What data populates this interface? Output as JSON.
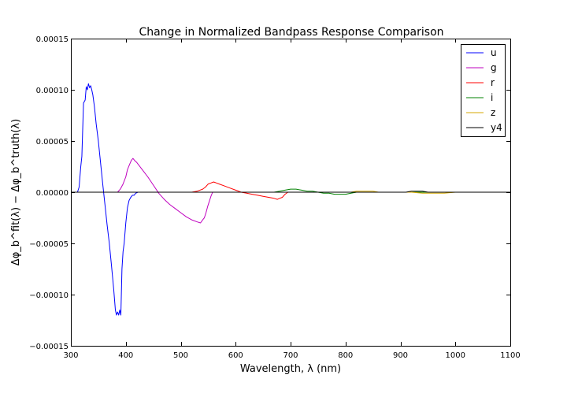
{
  "chart_data": {
    "type": "line",
    "title": "Change in Normalized Bandpass Response Comparison",
    "xlabel": "Wavelength, λ (nm)",
    "ylabel": "Δφ_b^fit(λ) − Δφ_b^truth(λ)",
    "xlim": [
      300,
      1100
    ],
    "ylim": [
      -0.00015,
      0.00015
    ],
    "x_ticks": [
      300,
      400,
      500,
      600,
      700,
      800,
      900,
      1000,
      1100
    ],
    "y_ticks": [
      -0.00015,
      -0.0001,
      -5e-05,
      0.0,
      5e-05,
      0.0001,
      0.00015
    ],
    "x_tick_labels": [
      "300",
      "400",
      "500",
      "600",
      "700",
      "800",
      "900",
      "1000",
      "1100"
    ],
    "y_tick_labels": [
      "−0.00015",
      "−0.00010",
      "−0.00005",
      "0.00000",
      "0.00005",
      "0.00010",
      "0.00015"
    ],
    "grid": false,
    "legend_position": "top-right",
    "series": [
      {
        "name": "u",
        "color": "#0000ff",
        "x": [
          300,
          312,
          315,
          318,
          320,
          323,
          326,
          328,
          330,
          332,
          334,
          336,
          338,
          340,
          343,
          346,
          350,
          354,
          358,
          362,
          366,
          370,
          374,
          378,
          381,
          383,
          385,
          387,
          389,
          391,
          393,
          395,
          397,
          400,
          403,
          406,
          409,
          412,
          415,
          418,
          422,
          430,
          450,
          500,
          600,
          700,
          800,
          900,
          1000,
          1100
        ],
        "y": [
          0,
          0,
          5e-06,
          2.5e-05,
          3.5e-05,
          8.7e-05,
          9e-05,
          0.000103,
          0.0001,
          0.000106,
          0.000102,
          0.000104,
          0.0001,
          9.5e-05,
          8.3e-05,
          6.7e-05,
          5e-05,
          2.9e-05,
          8e-06,
          -1.2e-05,
          -3.2e-05,
          -5e-05,
          -7.2e-05,
          -9.5e-05,
          -0.000115,
          -0.00012,
          -0.000117,
          -0.00012,
          -0.000115,
          -0.00012,
          -7.5e-05,
          -5.8e-05,
          -5e-05,
          -3e-05,
          -1.5e-05,
          -8e-06,
          -5e-06,
          -3e-06,
          -3e-06,
          -1e-06,
          0,
          0,
          0,
          0,
          0,
          0,
          0,
          0,
          0,
          0
        ]
      },
      {
        "name": "g",
        "color": "#bf00bf",
        "x": [
          300,
          385,
          390,
          395,
          400,
          403,
          406,
          410,
          413,
          416,
          420,
          430,
          440,
          450,
          460,
          470,
          480,
          490,
          500,
          510,
          520,
          530,
          536,
          540,
          543,
          546,
          549,
          552,
          555,
          558,
          561,
          565,
          600,
          700,
          800,
          900,
          1000,
          1100
        ],
        "y": [
          0,
          0,
          3e-06,
          8e-06,
          1.5e-05,
          2.2e-05,
          2.6e-05,
          3.1e-05,
          3.3e-05,
          3.1e-05,
          2.9e-05,
          2.2e-05,
          1.5e-05,
          7e-06,
          -1e-06,
          -7e-06,
          -1.2e-05,
          -1.6e-05,
          -2e-05,
          -2.4e-05,
          -2.7e-05,
          -2.9e-05,
          -3e-05,
          -2.7e-05,
          -2.5e-05,
          -2e-05,
          -1.4e-05,
          -9e-06,
          -4e-06,
          0,
          0,
          0,
          0,
          0,
          0,
          0,
          0,
          0
        ]
      },
      {
        "name": "r",
        "color": "#ff0000",
        "x": [
          300,
          520,
          530,
          540,
          545,
          550,
          555,
          560,
          565,
          570,
          580,
          590,
          600,
          610,
          620,
          630,
          640,
          650,
          660,
          670,
          676,
          680,
          685,
          690,
          695,
          700,
          720,
          800,
          900,
          1000,
          1100
        ],
        "y": [
          0,
          0,
          1e-06,
          3e-06,
          5e-06,
          8e-06,
          9e-06,
          1e-05,
          9e-06,
          8e-06,
          6e-06,
          4e-06,
          2e-06,
          0,
          -1e-06,
          -2e-06,
          -3e-06,
          -4e-06,
          -5e-06,
          -6e-06,
          -7e-06,
          -6e-06,
          -5e-06,
          -2e-06,
          0,
          0,
          0,
          0,
          0,
          0,
          0
        ]
      },
      {
        "name": "i",
        "color": "#008000",
        "x": [
          300,
          670,
          680,
          690,
          700,
          710,
          720,
          730,
          740,
          750,
          760,
          770,
          780,
          790,
          800,
          810,
          820,
          830,
          840,
          850,
          870,
          900,
          1000,
          1100
        ],
        "y": [
          0,
          0,
          1e-06,
          2e-06,
          3e-06,
          3e-06,
          2e-06,
          1e-06,
          1e-06,
          0,
          -1e-06,
          -1e-06,
          -2e-06,
          -2e-06,
          -2e-06,
          -1e-06,
          0,
          0,
          0,
          0,
          0,
          0,
          0,
          0
        ]
      },
      {
        "name": "z",
        "color": "#d4a700",
        "x": [
          300,
          800,
          810,
          820,
          830,
          840,
          850,
          860,
          880,
          900,
          920,
          940,
          960,
          980,
          1000,
          1020,
          1040,
          1100
        ],
        "y": [
          0,
          0,
          0,
          1e-06,
          1e-06,
          1e-06,
          1e-06,
          0,
          0,
          0,
          0,
          -1e-06,
          -1e-06,
          -1e-06,
          0,
          0,
          0,
          0
        ]
      },
      {
        "name": "y4",
        "color": "#000000",
        "x": [
          300,
          900,
          910,
          920,
          930,
          940,
          950,
          960,
          980,
          1000,
          1050,
          1100
        ],
        "y": [
          0,
          0,
          0,
          1e-06,
          1e-06,
          1e-06,
          0,
          0,
          0,
          0,
          0,
          0
        ]
      }
    ]
  }
}
